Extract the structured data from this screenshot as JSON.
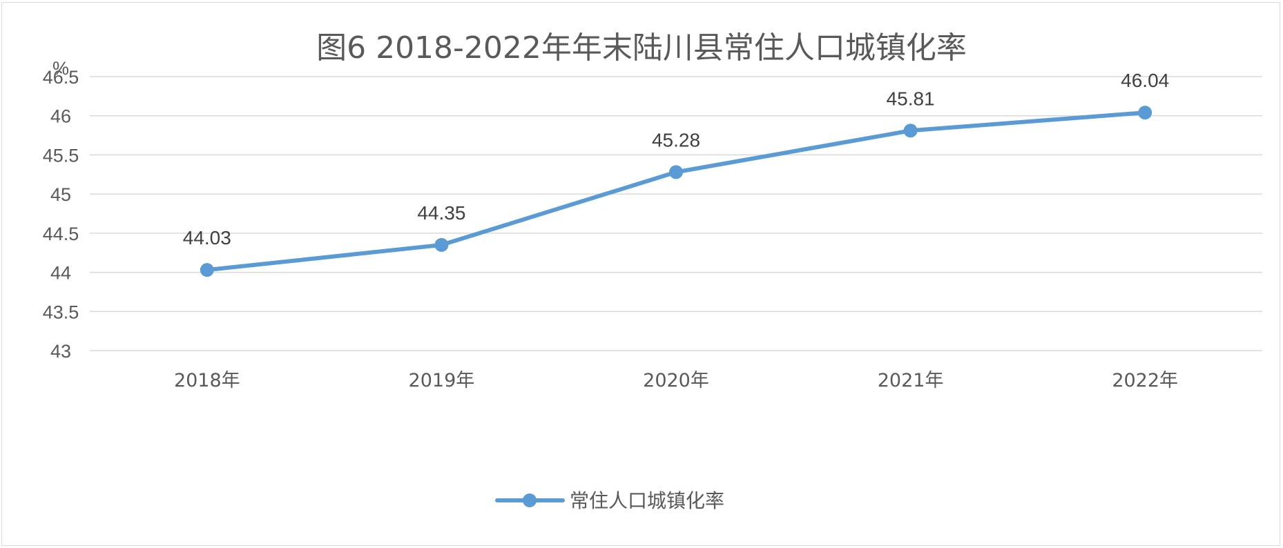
{
  "chart_data": {
    "type": "line",
    "title": "图6  2018-2022年年末陆川县常住人口城镇化率",
    "ylabel": "%",
    "xlabel": "",
    "categories": [
      "2018年",
      "2019年",
      "2020年",
      "2021年",
      "2022年"
    ],
    "series": [
      {
        "name": "常住人口城镇化率",
        "values": [
          44.03,
          44.35,
          45.28,
          45.81,
          46.04
        ],
        "color": "#5b9bd5"
      }
    ],
    "ylim": [
      43,
      46.5
    ],
    "yticks": [
      "43",
      "43.5",
      "44",
      "44.5",
      "45",
      "45.5",
      "46",
      "46.5"
    ],
    "data_labels": [
      "44.03",
      "44.35",
      "45.28",
      "45.81",
      "46.04"
    ],
    "grid": true,
    "legend": "bottom"
  }
}
